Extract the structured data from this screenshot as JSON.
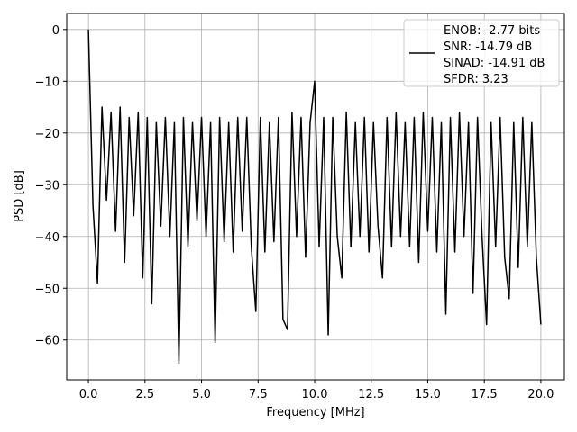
{
  "chart_data": {
    "type": "line",
    "x_label": "Frequency [MHz]",
    "y_label": "PSD [dB]",
    "x": [
      0,
      0.2,
      0.4,
      0.6,
      0.8,
      1.0,
      1.2,
      1.4,
      1.6,
      1.8,
      2.0,
      2.2,
      2.4,
      2.6,
      2.8,
      3.0,
      3.2,
      3.4,
      3.6,
      3.8,
      4.0,
      4.2,
      4.4,
      4.6,
      4.8,
      5.0,
      5.2,
      5.4,
      5.6,
      5.8,
      6.0,
      6.2,
      6.4,
      6.6,
      6.8,
      7.0,
      7.2,
      7.4,
      7.6,
      7.8,
      8.0,
      8.2,
      8.4,
      8.6,
      8.8,
      9.0,
      9.2,
      9.4,
      9.6,
      9.8,
      10.0,
      10.2,
      10.4,
      10.6,
      10.8,
      11.0,
      11.2,
      11.4,
      11.6,
      11.8,
      12.0,
      12.2,
      12.4,
      12.6,
      12.8,
      13.0,
      13.2,
      13.4,
      13.6,
      13.8,
      14.0,
      14.2,
      14.4,
      14.6,
      14.8,
      15.0,
      15.2,
      15.4,
      15.6,
      15.8,
      16.0,
      16.2,
      16.4,
      16.6,
      16.8,
      17.0,
      17.2,
      17.4,
      17.6,
      17.8,
      18.0,
      18.2,
      18.4,
      18.6,
      18.8,
      19.0,
      19.2,
      19.4,
      19.6,
      19.8,
      20.0
    ],
    "series": [
      {
        "name": "ENOB: -2.77 bits\nSNR: -14.79 dB\nSINAD: -14.91 dB\nSFDR: 3.23",
        "color": "#000000",
        "values": [
          0,
          -34,
          -49,
          -15,
          -33,
          -16,
          -39,
          -15,
          -45,
          -17,
          -36,
          -16,
          -48,
          -17,
          -53,
          -18,
          -38,
          -17,
          -40,
          -18,
          -64.5,
          -17,
          -42,
          -18,
          -37,
          -17,
          -40,
          -18,
          -60.5,
          -17,
          -41,
          -18,
          -43,
          -17,
          -39,
          -17,
          -42,
          -54.5,
          -17,
          -43,
          -18,
          -41,
          -17,
          -56,
          -58,
          -16,
          -40,
          -17,
          -44,
          -18,
          -10,
          -42,
          -17,
          -59,
          -17,
          -40,
          -48,
          -16,
          -42,
          -18,
          -40,
          -17,
          -43,
          -18,
          -38,
          -48,
          -17,
          -42,
          -16,
          -40,
          -18,
          -42,
          -17,
          -45,
          -16,
          -39,
          -17,
          -43,
          -18,
          -55,
          -17,
          -43,
          -16,
          -40,
          -18,
          -51,
          -17,
          -40,
          -57,
          -18,
          -42,
          -17,
          -44,
          -52,
          -18,
          -46,
          -17,
          -42,
          -18,
          -44,
          -57
        ]
      }
    ],
    "xlim": [
      -0.96,
      21.04
    ],
    "ylim": [
      -67.7,
      3.1
    ],
    "xticks": [
      {
        "value": 0,
        "label": "0.0"
      },
      2.5,
      {
        "value": 5,
        "label": "5.0"
      },
      7.5,
      {
        "value": 10,
        "label": "10.0"
      },
      12.5,
      {
        "value": 15,
        "label": "15.0"
      },
      17.5,
      {
        "value": 20,
        "label": "20.0"
      }
    ],
    "yticks": [
      {
        "value": -60,
        "label": "−60"
      },
      {
        "value": -50,
        "label": "−50"
      },
      {
        "value": -40,
        "label": "−40"
      },
      {
        "value": -30,
        "label": "−30"
      },
      {
        "value": -20,
        "label": "−20"
      },
      {
        "value": -10,
        "label": "−10"
      },
      0
    ],
    "grid": true,
    "legend": "upper right"
  }
}
